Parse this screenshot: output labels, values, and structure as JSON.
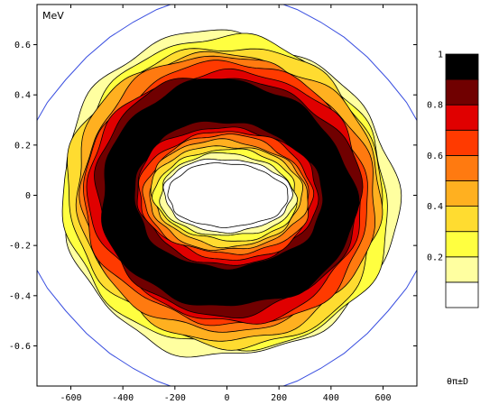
{
  "chart_data": {
    "type": "heatmap",
    "title": "",
    "subtitle": "",
    "unit_label": "MeV",
    "corner_label": "θπ±D",
    "xlim": [
      -730,
      730
    ],
    "ylim": [
      -0.76,
      0.76
    ],
    "x_ticks": [
      {
        "value": -600,
        "label": "-600"
      },
      {
        "value": -400,
        "label": "-400"
      },
      {
        "value": -200,
        "label": "-200"
      },
      {
        "value": 0,
        "label": "0"
      },
      {
        "value": 200,
        "label": "200"
      },
      {
        "value": 400,
        "label": "400"
      },
      {
        "value": 600,
        "label": "600"
      }
    ],
    "y_ticks": [
      {
        "value": 0.6,
        "label": "0.6"
      },
      {
        "value": 0.4,
        "label": "0.4"
      },
      {
        "value": 0.2,
        "label": "0.2"
      },
      {
        "value": 0,
        "label": "0"
      },
      {
        "value": -0.2,
        "label": "-0.2"
      },
      {
        "value": -0.4,
        "label": "-0.4"
      },
      {
        "value": -0.6,
        "label": "-0.6"
      }
    ],
    "colorbar": {
      "range": [
        0,
        1
      ],
      "levels": [
        {
          "from": 0.0,
          "to": 0.1,
          "color": "#ffffff"
        },
        {
          "from": 0.1,
          "to": 0.2,
          "color": "#ffffa0"
        },
        {
          "from": 0.2,
          "to": 0.3,
          "color": "#ffff40"
        },
        {
          "from": 0.3,
          "to": 0.4,
          "color": "#ffdc30"
        },
        {
          "from": 0.4,
          "to": 0.5,
          "color": "#ffb020"
        },
        {
          "from": 0.5,
          "to": 0.6,
          "color": "#ff7a10"
        },
        {
          "from": 0.6,
          "to": 0.7,
          "color": "#ff3a00"
        },
        {
          "from": 0.7,
          "to": 0.8,
          "color": "#e00000"
        },
        {
          "from": 0.8,
          "to": 0.9,
          "color": "#700000"
        },
        {
          "from": 0.9,
          "to": 1.0,
          "color": "#000000"
        }
      ],
      "ticks": [
        {
          "value": 1,
          "label": "1"
        },
        {
          "value": 0.8,
          "label": "0.8"
        },
        {
          "value": 0.6,
          "label": "0.6"
        },
        {
          "value": 0.4,
          "label": "0.4"
        },
        {
          "value": 0.2,
          "label": "0.2"
        }
      ]
    },
    "ring": {
      "center": [
        0,
        0.0
      ],
      "outer_radius": [
        625,
        0.66
      ],
      "inner_radius": [
        225,
        0.13
      ],
      "peak_radius_fraction": 0.58,
      "peak_value": 1.0
    },
    "kinematic_boundary": {
      "color": "#3a4fe0",
      "points": [
        [
          -740,
          0.28
        ],
        [
          -690,
          0.37
        ],
        [
          -620,
          0.46
        ],
        [
          -540,
          0.55
        ],
        [
          -450,
          0.63
        ],
        [
          -360,
          0.69
        ],
        [
          -270,
          0.74
        ],
        [
          -190,
          0.77
        ]
      ]
    },
    "grid": false,
    "legend_placement": "right"
  }
}
